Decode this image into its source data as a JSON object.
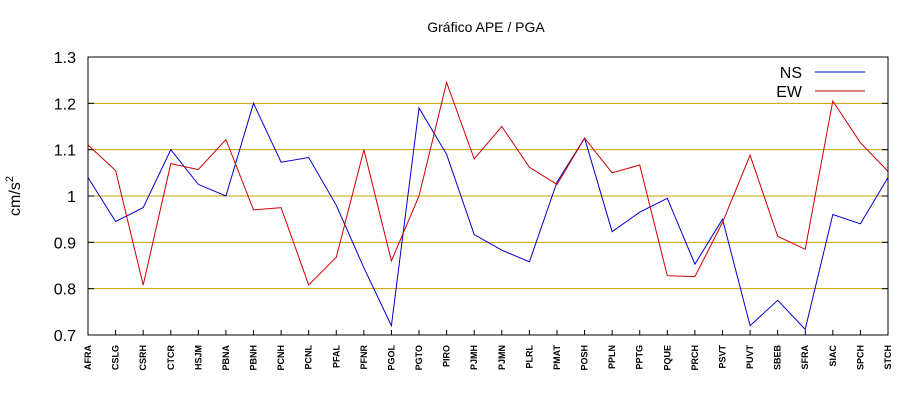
{
  "chart_data": {
    "type": "line",
    "title": "Gráfico  APE / PGA",
    "ylabel": "cm/s",
    "ylabel_superscript": "2",
    "xlabel": "",
    "ylim": [
      0.7,
      1.3
    ],
    "yticks": [
      "0.7",
      "0.8",
      "0.9",
      "1",
      "1.1",
      "1.2",
      "1.3"
    ],
    "grid": "horizontal",
    "legend_position": "top-right",
    "categories": [
      "AFRA",
      "CSLG",
      "CSRH",
      "CTCR",
      "HSJM",
      "PBNA",
      "PBNH",
      "PCNH",
      "PCNL",
      "PFAL",
      "PFNR",
      "PGOL",
      "PGTO",
      "PIRO",
      "PJMH",
      "PJMN",
      "PLRL",
      "PMAT",
      "POSH",
      "PPLN",
      "PPTG",
      "PQUE",
      "PRCH",
      "PSVT",
      "PUVT",
      "SBEB",
      "SFRA",
      "SIAC",
      "SPCH",
      "STCH"
    ],
    "series": [
      {
        "name": "NS",
        "color": "#0000cc",
        "values": [
          1.04,
          0.945,
          0.975,
          1.1,
          1.025,
          1.0,
          1.2,
          1.073,
          1.083,
          0.98,
          0.845,
          0.72,
          1.19,
          1.09,
          0.917,
          0.883,
          0.858,
          1.03,
          1.125,
          0.923,
          0.965,
          0.995,
          0.853,
          0.95,
          0.72,
          0.775,
          0.712,
          0.96,
          0.94,
          1.04
        ]
      },
      {
        "name": "EW",
        "color": "#cc0000",
        "values": [
          1.11,
          1.055,
          0.808,
          1.07,
          1.057,
          1.122,
          0.97,
          0.975,
          0.808,
          0.868,
          1.1,
          0.86,
          1.0,
          1.245,
          1.08,
          1.15,
          1.062,
          1.025,
          1.125,
          1.05,
          1.067,
          0.828,
          0.826,
          0.943,
          1.088,
          0.913,
          0.885,
          1.205,
          1.115,
          1.053
        ]
      }
    ],
    "colors": {
      "grid": "#c8a000",
      "axis": "#000000"
    }
  }
}
